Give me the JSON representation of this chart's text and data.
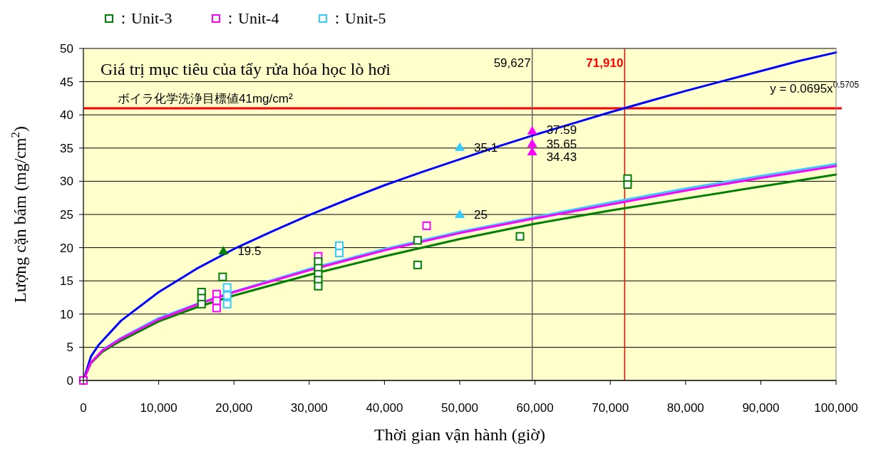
{
  "chart_data": {
    "type": "line",
    "xlabel": "Thời gian vận hành (giờ)",
    "ylabel": "Lượng cặn bám (mg/cm$^{2}$)",
    "xlim": [
      0,
      100000
    ],
    "ylim": [
      0,
      50
    ],
    "xticks": [
      0,
      {
        "value": 10000,
        "label": "10,000"
      },
      {
        "value": 20000,
        "label": "20,000"
      },
      {
        "value": 30000,
        "label": "30,000"
      },
      {
        "value": 40000,
        "label": "40,000"
      },
      {
        "value": 50000,
        "label": "50,000"
      },
      {
        "value": 60000,
        "label": "60,000"
      },
      {
        "value": 70000,
        "label": "70,000"
      },
      {
        "value": 80000,
        "label": "80,000"
      },
      {
        "value": 90000,
        "label": "90,000"
      },
      {
        "value": 100000,
        "label": "100,000"
      }
    ],
    "yticks": [
      0,
      5,
      10,
      15,
      20,
      25,
      30,
      35,
      40,
      45,
      50
    ],
    "grid": "y",
    "legend": "top left",
    "series": [
      {
        "color": "#0000ff",
        "marker": "none",
        "x": [
          0,
          1000,
          2000,
          5000,
          10000,
          15000,
          20000,
          25000,
          30000,
          35000,
          40000,
          45000,
          50000,
          55000,
          60000,
          65000,
          70000,
          75000,
          80000,
          85000,
          90000,
          95000,
          100000
        ],
        "values": [
          0,
          3.6,
          5.3,
          9.0,
          13.3,
          16.8,
          19.8,
          22.4,
          24.9,
          27.2,
          29.4,
          31.4,
          33.3,
          35.2,
          37.0,
          38.7,
          40.4,
          42.0,
          43.6,
          45.1,
          46.6,
          48.1,
          49.4
        ]
      },
      {
        "color": "#008000",
        "marker": "none",
        "x": [
          0,
          1000,
          2500,
          5000,
          10000,
          15000,
          20000,
          30000,
          40000,
          50000,
          60000,
          70000,
          80000,
          90000,
          100000
        ],
        "values": [
          0,
          2.6,
          4.3,
          6.0,
          8.9,
          11.0,
          12.8,
          15.9,
          18.7,
          21.3,
          23.6,
          25.6,
          27.4,
          29.2,
          31.0
        ]
      },
      {
        "color": "#33ccff",
        "marker": "none",
        "x": [
          2500,
          5000,
          10000,
          15000,
          20000,
          30000,
          40000,
          50000,
          60000,
          70000,
          80000,
          90000,
          100000
        ],
        "values": [
          4.6,
          6.4,
          9.4,
          11.5,
          13.4,
          16.8,
          19.8,
          22.4,
          24.6,
          26.8,
          28.9,
          30.8,
          32.6
        ]
      },
      {
        "color": "#ff00ff",
        "marker": "none",
        "x": [
          0,
          1000,
          2500,
          5000,
          10000,
          15000,
          20000,
          30000,
          40000,
          50000,
          60000,
          70000,
          80000,
          90000,
          100000
        ],
        "values": [
          0,
          2.7,
          4.5,
          6.3,
          9.2,
          11.4,
          13.3,
          16.6,
          19.6,
          22.2,
          24.4,
          26.5,
          28.6,
          30.5,
          32.3
        ]
      },
      {
        "type": "scatter",
        "name": "：Unit-3",
        "color": "#008000",
        "marker": "square",
        "x": [
          15700,
          15700,
          15700,
          18500,
          31200,
          31200,
          31200,
          31200,
          31200,
          44400,
          44400,
          58000,
          72300,
          72300
        ],
        "values": [
          13.3,
          12.4,
          11.5,
          15.6,
          17.9,
          16.9,
          16.0,
          15.1,
          14.2,
          21.1,
          17.4,
          21.7,
          30.4,
          29.5
        ]
      },
      {
        "type": "scatter",
        "name": "：Unit-4",
        "color": "#ff00ff",
        "marker": "square",
        "x": [
          0,
          17700,
          17700,
          17700,
          31200,
          45600
        ],
        "values": [
          0,
          13.0,
          12.0,
          10.9,
          18.7,
          23.3
        ]
      },
      {
        "type": "scatter",
        "name": "：Unit-5",
        "color": "#33ccff",
        "marker": "square",
        "x": [
          19100,
          19100,
          19100,
          34000,
          34000
        ],
        "values": [
          14.0,
          12.8,
          11.5,
          20.3,
          19.2
        ]
      },
      {
        "type": "scatter",
        "color": "#008000",
        "marker": "triangle",
        "x": [
          18600
        ],
        "values": [
          19.5
        ],
        "value_labels": [
          "19.5"
        ]
      },
      {
        "type": "scatter",
        "color": "#33ccff",
        "marker": "triangle",
        "x": [
          50000,
          50000
        ],
        "values": [
          35.1,
          25
        ],
        "value_labels": [
          "35.1",
          "25"
        ]
      },
      {
        "type": "scatter",
        "color": "#ff00ff",
        "marker": "triangle",
        "x": [
          59627,
          59627,
          59627
        ],
        "values": [
          37.59,
          35.65,
          34.43
        ],
        "value_labels": [
          "37.59",
          "35.65",
          "34.43"
        ]
      }
    ],
    "ref_lines": [
      {
        "axis": "y",
        "value": 41,
        "label": "ボイラ化学洗浄目標値41mg/cm²",
        "color": "#ff0000"
      },
      {
        "axis": "x",
        "value": 59627,
        "label": "59,627",
        "color": "#606060"
      },
      {
        "axis": "x",
        "value": 71910,
        "label": "71,910",
        "color": "#ff0000"
      }
    ],
    "annotations": [
      "Giá trị mục tiêu của tẩy rửa hóa học lò hơi",
      "y = 0.0695x$^{0.5705}$"
    ]
  }
}
